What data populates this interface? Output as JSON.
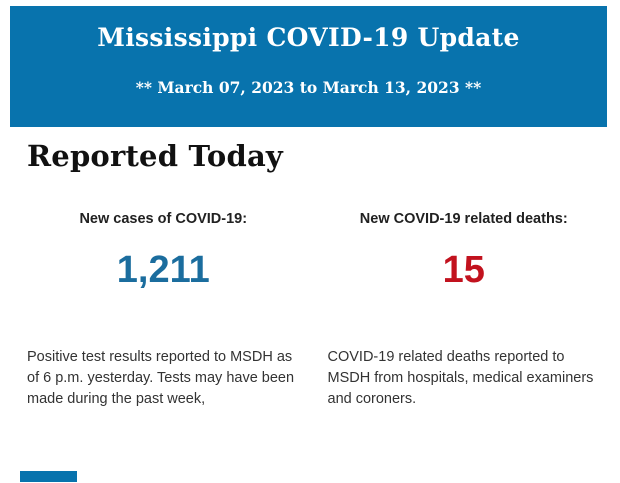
{
  "colors": {
    "header_bg": "#0873ad",
    "header_text": "#ffffff",
    "heading_text": "#111111",
    "label_text": "#212121",
    "cases_number": "#1b6d9e",
    "deaths_number": "#c2121e",
    "body_text": "#333333",
    "page_bg": "#ffffff"
  },
  "header": {
    "title": "Mississippi COVID-19 Update",
    "date_range": "** March 07, 2023 to March 13, 2023 **"
  },
  "section": {
    "heading": "Reported Today",
    "stats": [
      {
        "label": "New cases of COVID-19:",
        "value": "1,211",
        "description": "Positive test results reported to MSDH as\nof 6 p.m. yesterday. Tests may have been\nmade during the past week,"
      },
      {
        "label": "New COVID-19 related deaths:",
        "value": "15",
        "description": "COVID-19 related deaths reported to\nMSDH from hospitals, medical examiners\nand coroners."
      }
    ]
  }
}
